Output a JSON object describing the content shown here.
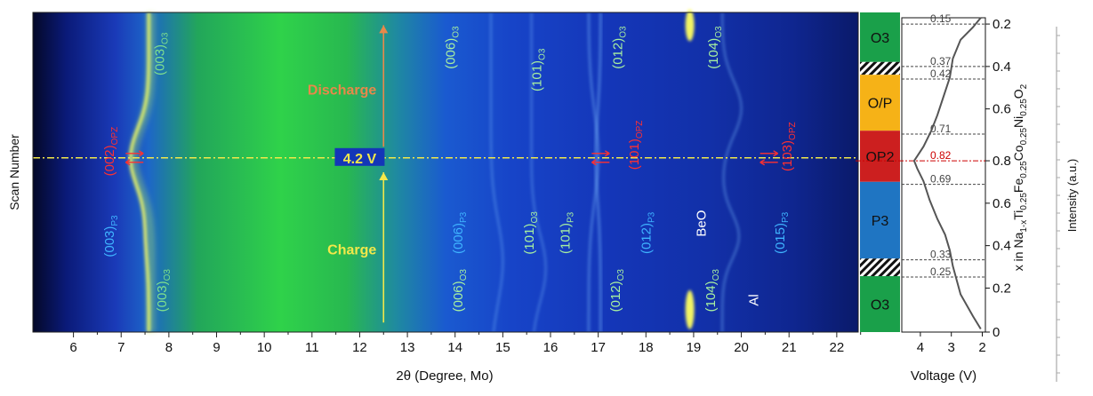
{
  "chart_data": [
    {
      "type": "heatmap",
      "title": "",
      "xlabel": "2θ (Degree, Mo)",
      "ylabel": "Scan Number",
      "xlim": [
        5.15,
        22.45
      ],
      "xticks": [
        "6",
        "7",
        "8",
        "9",
        "10",
        "11",
        "12",
        "13",
        "14",
        "15",
        "16",
        "17",
        "18",
        "19",
        "20",
        "21",
        "22"
      ],
      "center_label": "4.2 V",
      "process_labels": [
        {
          "text": "Discharge",
          "x": 12.5,
          "row": 0.24,
          "color": "#e8884a"
        },
        {
          "text": "Charge",
          "x": 12.5,
          "row": 0.74,
          "color": "#f2e84a"
        }
      ],
      "peak_labels": [
        {
          "main": "(003)",
          "sub": "O3",
          "x": 7.9,
          "row": 0.13,
          "color": "#7fe08c"
        },
        {
          "main": "(006)",
          "sub": "O3",
          "x": 14.0,
          "row": 0.11,
          "color": "#a8f0a0"
        },
        {
          "main": "(101)",
          "sub": "O3",
          "x": 15.8,
          "row": 0.18,
          "color": "#a8f0a0"
        },
        {
          "main": "(012)",
          "sub": "O3",
          "x": 17.5,
          "row": 0.11,
          "color": "#a8f0a0"
        },
        {
          "main": "(104)",
          "sub": "O3",
          "x": 19.5,
          "row": 0.11,
          "color": "#a8f0a0"
        },
        {
          "main": "(002)",
          "sub": "OPZ",
          "x": 6.85,
          "row": 0.435,
          "color": "#ff3030"
        },
        {
          "main": "(101)",
          "sub": "OPZ",
          "x": 17.85,
          "row": 0.415,
          "color": "#ff3030"
        },
        {
          "main": "(103)",
          "sub": "OPZ",
          "x": 21.05,
          "row": 0.42,
          "color": "#ff3030"
        },
        {
          "main": "(003)",
          "sub": "P3",
          "x": 6.85,
          "row": 0.7,
          "color": "#3fb4ff"
        },
        {
          "main": "(006)",
          "sub": "P3",
          "x": 14.15,
          "row": 0.69,
          "color": "#3fb4ff"
        },
        {
          "main": "(101)",
          "sub": "O3",
          "x": 15.65,
          "row": 0.69,
          "color": "#a8f0a0"
        },
        {
          "main": "(101)",
          "sub": "P3",
          "x": 16.4,
          "row": 0.69,
          "color": "#a8f0a0"
        },
        {
          "main": "(012)",
          "sub": "P3",
          "x": 18.1,
          "row": 0.69,
          "color": "#3fb4ff"
        },
        {
          "main": "(015)",
          "sub": "P3",
          "x": 20.9,
          "row": 0.69,
          "color": "#3fb4ff"
        },
        {
          "main": "(003)",
          "sub": "O3",
          "x": 7.95,
          "row": 0.87,
          "color": "#7fe08c"
        },
        {
          "main": "(006)",
          "sub": "O3",
          "x": 14.15,
          "row": 0.87,
          "color": "#a8f0a0"
        },
        {
          "main": "(012)",
          "sub": "O3",
          "x": 17.45,
          "row": 0.87,
          "color": "#a8f0a0"
        },
        {
          "main": "(104)",
          "sub": "O3",
          "x": 19.45,
          "row": 0.87,
          "color": "#a8f0a0"
        }
      ],
      "plain_labels": [
        {
          "text": "BeO",
          "x": 19.25,
          "row": 0.66,
          "color": "#ffffff"
        },
        {
          "text": "Al",
          "x": 20.35,
          "row": 0.9,
          "color": "#ffffff"
        }
      ]
    },
    {
      "type": "line",
      "title": "",
      "xlabel": "Voltage (V)",
      "ylabel_parts": [
        {
          "t": "x in Na",
          "sub": false
        },
        {
          "t": "1-x",
          "sub": true
        },
        {
          "t": "Ti",
          "sub": false
        },
        {
          "t": "0.25",
          "sub": true
        },
        {
          "t": "Fe",
          "sub": false
        },
        {
          "t": "0.25",
          "sub": true
        },
        {
          "t": "Co",
          "sub": false
        },
        {
          "t": "0.25",
          "sub": true
        },
        {
          "t": "Ni",
          "sub": false
        },
        {
          "t": "0.25",
          "sub": true
        },
        {
          "t": "O",
          "sub": false
        },
        {
          "t": "2",
          "sub": true
        }
      ],
      "xlim": [
        4.6,
        1.9
      ],
      "xticks": [
        4,
        3,
        2
      ],
      "y_row_ticks": [
        {
          "label": "0.2",
          "row": 0.02
        },
        {
          "label": "0.4",
          "row": 0.155
        },
        {
          "label": "0.6",
          "row": 0.29
        },
        {
          "label": "0.8",
          "row": 0.455
        },
        {
          "label": "0.6",
          "row": 0.59
        },
        {
          "label": "0.4",
          "row": 0.725
        },
        {
          "label": "0.2",
          "row": 0.86
        },
        {
          "label": "0",
          "row": 1.0
        }
      ],
      "curve": {
        "voltage": [
          2.05,
          2.3,
          2.7,
          2.95,
          3.05,
          3.25,
          3.45,
          3.65,
          3.9,
          4.1,
          4.2,
          4.1,
          3.9,
          3.7,
          3.45,
          3.2,
          3.05,
          2.95,
          2.7,
          2.3,
          2.05
        ],
        "row": [
          0.0,
          0.03,
          0.07,
          0.13,
          0.19,
          0.25,
          0.31,
          0.36,
          0.41,
          0.44,
          0.455,
          0.48,
          0.52,
          0.58,
          0.64,
          0.69,
          0.74,
          0.79,
          0.88,
          0.95,
          0.99
        ]
      },
      "reference_lines": [
        {
          "x_label": "0.15",
          "row": 0.02
        },
        {
          "x_label": "0.37",
          "row": 0.155
        },
        {
          "x_label": "0.42",
          "row": 0.195
        },
        {
          "x_label": "0.71",
          "row": 0.37
        },
        {
          "x_label": "0.82",
          "row": 0.455,
          "highlight": true
        },
        {
          "x_label": "0.69",
          "row": 0.53
        },
        {
          "x_label": "0.33",
          "row": 0.77
        },
        {
          "x_label": "0.25",
          "row": 0.825
        }
      ],
      "highlight_color": "#cc0000"
    },
    {
      "type": "heatmap",
      "title": "",
      "ylabel": "Intensity (a.u.)",
      "phase_bands": [
        {
          "label": "O3",
          "color": "#1aa04a",
          "start": 0.0,
          "end": 0.155
        },
        {
          "label": "",
          "color": "hatch",
          "start": 0.155,
          "end": 0.195
        },
        {
          "label": "O/P",
          "color": "#f6b217",
          "start": 0.195,
          "end": 0.37
        },
        {
          "label": "OP2",
          "color": "#cc1f1f",
          "start": 0.37,
          "end": 0.53
        },
        {
          "label": "P3",
          "color": "#1f75c2",
          "start": 0.53,
          "end": 0.77
        },
        {
          "label": "",
          "color": "hatch",
          "start": 0.77,
          "end": 0.825
        },
        {
          "label": "O3",
          "color": "#1aa04a",
          "start": 0.825,
          "end": 1.0
        }
      ]
    }
  ]
}
